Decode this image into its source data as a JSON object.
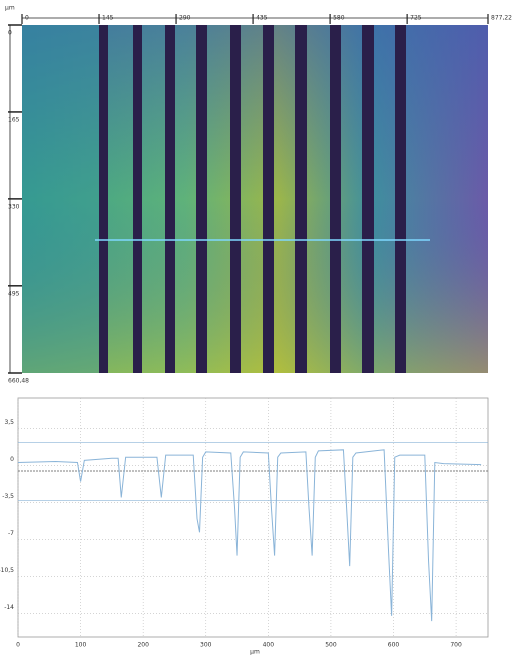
{
  "image": {
    "unit": "µm",
    "xlim": [
      0,
      877.22
    ],
    "xticks": [
      0,
      145,
      290,
      435,
      580,
      725,
      {
        "value": 877.22,
        "label": "877,22"
      }
    ],
    "ylim": [
      0,
      660.48
    ],
    "yticks": [
      0,
      165,
      330,
      495,
      {
        "value": 660.48,
        "label": "660,48"
      }
    ]
  },
  "chart_data": {
    "type": "line",
    "x_label": "µm",
    "xlim": [
      0,
      751
    ],
    "ylim": [
      -16.2,
      6.4
    ],
    "xticks": [
      0,
      100,
      200,
      300,
      400,
      500,
      600,
      700
    ],
    "yticks": [
      {
        "value": 3.5,
        "label": "3,5"
      },
      0,
      {
        "value": -3.5,
        "label": "-3,5"
      },
      -7,
      {
        "value": -10.5,
        "label": "-10,5"
      },
      -14
    ],
    "grid": true,
    "reference_lines": [
      2.2,
      -0.5,
      -3.3
    ],
    "series": [
      {
        "color": "#8ab4d8",
        "x": [
          0,
          60,
          95,
          100,
          106,
          150,
          160,
          165,
          172,
          222,
          229,
          236,
          280,
          286,
          290,
          295,
          300,
          340,
          346,
          350,
          355,
          360,
          400,
          405,
          410,
          415,
          420,
          460,
          465,
          470,
          475,
          480,
          520,
          526,
          530,
          535,
          540,
          585,
          592,
          597,
          602,
          610,
          650,
          656,
          661,
          666,
          680,
          740
        ],
        "values": [
          0.3,
          0.4,
          0.3,
          -1.5,
          0.5,
          0.7,
          0.7,
          -3,
          0.8,
          0.8,
          -3,
          1,
          1,
          -5,
          -6.3,
          0.8,
          1.3,
          1.2,
          -4,
          -8.5,
          0.8,
          1.3,
          1.2,
          -4,
          -8.5,
          0.8,
          1.2,
          1.3,
          -4,
          -8.5,
          0.8,
          1.4,
          1.5,
          -5,
          -9.5,
          0.8,
          1.2,
          1.5,
          -8,
          -14.2,
          0.8,
          1.0,
          1.0,
          -9,
          -14.7,
          0.3,
          0.2,
          0.1
        ]
      }
    ]
  }
}
